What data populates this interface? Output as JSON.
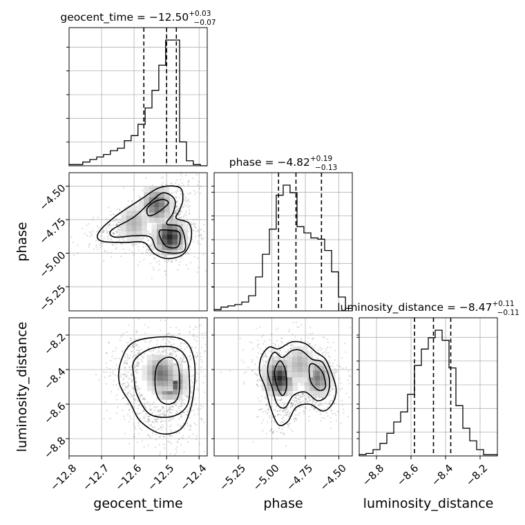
{
  "chart_data": {
    "type": "corner",
    "parameters": [
      {
        "name": "geocent_time",
        "axis_label": "geocent_time",
        "title_main": "geocent_time = −12.50",
        "title_sup": "+0.03",
        "title_sub": "−0.07",
        "range": [
          -12.8,
          -12.375
        ],
        "ticks": [
          -12.8,
          -12.7,
          -12.6,
          -12.5,
          -12.4
        ],
        "tick_labels": [
          "−12.8",
          "−12.7",
          "−12.6",
          "−12.5",
          "−12.4"
        ],
        "quantiles": [
          -12.57,
          -12.5,
          -12.47
        ],
        "histogram": {
          "edges": [
            -12.8,
            -12.779,
            -12.758,
            -12.736,
            -12.715,
            -12.694,
            -12.673,
            -12.651,
            -12.63,
            -12.609,
            -12.588,
            -12.566,
            -12.545,
            -12.524,
            -12.503,
            -12.481,
            -12.46,
            -12.439,
            -12.418,
            -12.396,
            -12.375
          ],
          "counts": [
            1,
            1,
            3,
            5,
            7,
            9,
            12,
            14,
            20,
            24,
            33,
            46,
            60,
            80,
            100,
            100,
            19,
            4,
            1,
            0
          ]
        }
      },
      {
        "name": "phase",
        "axis_label": "phase",
        "title_main": "phase = −4.82",
        "title_sup": "+0.19",
        "title_sub": "−0.13",
        "range": [
          -5.43,
          -4.4
        ],
        "ticks": [
          -5.25,
          -5.0,
          -4.75,
          -4.5
        ],
        "tick_labels": [
          "−5.25",
          "−5.00",
          "−4.75",
          "−4.50"
        ],
        "quantiles": [
          -4.95,
          -4.82,
          -4.63
        ],
        "histogram": {
          "edges": [
            -5.43,
            -5.379,
            -5.327,
            -5.276,
            -5.224,
            -5.173,
            -5.121,
            -5.07,
            -5.018,
            -4.967,
            -4.915,
            -4.864,
            -4.812,
            -4.761,
            -4.709,
            -4.657,
            -4.606,
            -4.554,
            -4.503,
            -4.451,
            -4.4
          ],
          "counts": [
            1,
            3,
            4,
            5,
            7,
            12,
            27,
            45,
            65,
            92,
            100,
            94,
            67,
            62,
            58,
            57,
            48,
            31,
            11,
            2
          ]
        }
      },
      {
        "name": "luminosity_distance",
        "axis_label": "luminosity_distance",
        "title_main": "luminosity_distance = −8.47",
        "title_sup": "+0.11",
        "title_sub": "−0.11",
        "range": [
          -8.9,
          -8.1
        ],
        "ticks": [
          -8.8,
          -8.6,
          -8.4,
          -8.2
        ],
        "tick_labels": [
          "−8.8",
          "−8.6",
          "−8.4",
          "−8.2"
        ],
        "quantiles": [
          -8.58,
          -8.47,
          -8.37
        ],
        "histogram": {
          "edges": [
            -8.9,
            -8.86,
            -8.82,
            -8.78,
            -8.74,
            -8.7,
            -8.66,
            -8.62,
            -8.58,
            -8.54,
            -8.5,
            -8.46,
            -8.42,
            -8.38,
            -8.34,
            -8.3,
            -8.26,
            -8.22,
            -8.18,
            -8.14,
            -8.1
          ],
          "counts": [
            1,
            2,
            5,
            10,
            18,
            27,
            35,
            49,
            72,
            85,
            94,
            100,
            92,
            70,
            40,
            22,
            12,
            5,
            1,
            1
          ]
        }
      }
    ],
    "panels_2d": [
      {
        "x_param": "geocent_time",
        "y_param": "phase",
        "centers": [
          {
            "x": -12.49,
            "y": -4.88,
            "w": 1.0
          },
          {
            "x": -12.53,
            "y": -4.64,
            "w": 0.7
          },
          {
            "x": -12.6,
            "y": -4.78,
            "w": 0.35
          }
        ],
        "cloud_center": {
          "x": -12.54,
          "y": -4.75
        },
        "contours": [
          {
            "level": 1,
            "points": [
              [
                -12.49,
                -4.83
              ],
              [
                -12.46,
                -4.85
              ],
              [
                -12.465,
                -4.95
              ],
              [
                -12.5,
                -4.95
              ],
              [
                -12.52,
                -4.88
              ],
              [
                -12.52,
                -4.83
              ]
            ]
          },
          {
            "level": 1,
            "points": [
              [
                -12.56,
                -4.67
              ],
              [
                -12.54,
                -4.62
              ],
              [
                -12.51,
                -4.6
              ],
              [
                -12.495,
                -4.63
              ],
              [
                -12.53,
                -4.7
              ],
              [
                -12.555,
                -4.72
              ]
            ]
          },
          {
            "level": 2,
            "points": [
              [
                -12.67,
                -4.83
              ],
              [
                -12.6,
                -4.73
              ],
              [
                -12.55,
                -4.62
              ],
              [
                -12.51,
                -4.55
              ],
              [
                -12.475,
                -4.6
              ],
              [
                -12.48,
                -4.7
              ],
              [
                -12.5,
                -4.78
              ],
              [
                -12.46,
                -4.8
              ],
              [
                -12.445,
                -4.88
              ],
              [
                -12.445,
                -4.98
              ],
              [
                -12.485,
                -5.0
              ],
              [
                -12.53,
                -4.97
              ],
              [
                -12.55,
                -4.88
              ],
              [
                -12.6,
                -4.87
              ],
              [
                -12.66,
                -4.88
              ]
            ]
          },
          {
            "level": 3,
            "points": [
              [
                -12.71,
                -4.85
              ],
              [
                -12.66,
                -4.73
              ],
              [
                -12.58,
                -4.6
              ],
              [
                -12.52,
                -4.51
              ],
              [
                -12.46,
                -4.51
              ],
              [
                -12.45,
                -4.6
              ],
              [
                -12.46,
                -4.68
              ],
              [
                -12.47,
                -4.74
              ],
              [
                -12.43,
                -4.78
              ],
              [
                -12.425,
                -4.9
              ],
              [
                -12.45,
                -5.01
              ],
              [
                -12.5,
                -5.04
              ],
              [
                -12.54,
                -5.0
              ],
              [
                -12.57,
                -4.92
              ],
              [
                -12.63,
                -4.92
              ],
              [
                -12.7,
                -4.91
              ]
            ]
          }
        ]
      },
      {
        "x_param": "geocent_time",
        "y_param": "luminosity_distance",
        "centers": [
          {
            "x": -12.49,
            "y": -8.47,
            "w": 1.0
          },
          {
            "x": -12.52,
            "y": -8.42,
            "w": 0.6
          }
        ],
        "cloud_center": {
          "x": -12.53,
          "y": -8.45
        },
        "contours": [
          {
            "level": 1,
            "points": [
              [
                -12.53,
                -8.38
              ],
              [
                -12.5,
                -8.33
              ],
              [
                -12.47,
                -8.35
              ],
              [
                -12.46,
                -8.45
              ],
              [
                -12.465,
                -8.56
              ],
              [
                -12.49,
                -8.6
              ],
              [
                -12.52,
                -8.58
              ],
              [
                -12.535,
                -8.5
              ]
            ]
          },
          {
            "level": 2,
            "points": [
              [
                -12.6,
                -8.35
              ],
              [
                -12.55,
                -8.28
              ],
              [
                -12.48,
                -8.27
              ],
              [
                -12.44,
                -8.33
              ],
              [
                -12.43,
                -8.45
              ],
              [
                -12.435,
                -8.6
              ],
              [
                -12.48,
                -8.67
              ],
              [
                -12.55,
                -8.66
              ],
              [
                -12.59,
                -8.55
              ],
              [
                -12.6,
                -8.45
              ]
            ]
          },
          {
            "level": 3,
            "points": [
              [
                -12.64,
                -8.35
              ],
              [
                -12.6,
                -8.24
              ],
              [
                -12.5,
                -8.21
              ],
              [
                -12.44,
                -8.24
              ],
              [
                -12.415,
                -8.35
              ],
              [
                -12.415,
                -8.5
              ],
              [
                -12.43,
                -8.65
              ],
              [
                -12.46,
                -8.75
              ],
              [
                -12.52,
                -8.77
              ],
              [
                -12.58,
                -8.7
              ],
              [
                -12.61,
                -8.6
              ],
              [
                -12.645,
                -8.48
              ]
            ]
          }
        ]
      },
      {
        "x_param": "phase",
        "y_param": "luminosity_distance",
        "centers": [
          {
            "x": -4.94,
            "y": -8.45,
            "w": 1.0
          },
          {
            "x": -4.66,
            "y": -8.45,
            "w": 0.6
          },
          {
            "x": -4.79,
            "y": -8.37,
            "w": 0.35
          }
        ],
        "cloud_center": {
          "x": -4.83,
          "y": -8.45
        },
        "contours": [
          {
            "level": 1,
            "points": [
              [
                -4.98,
                -8.41
              ],
              [
                -4.94,
                -8.35
              ],
              [
                -4.9,
                -8.4
              ],
              [
                -4.89,
                -8.5
              ],
              [
                -4.92,
                -8.55
              ],
              [
                -4.96,
                -8.5
              ]
            ]
          },
          {
            "level": 1,
            "points": [
              [
                -4.72,
                -8.38
              ],
              [
                -4.68,
                -8.37
              ],
              [
                -4.62,
                -8.42
              ],
              [
                -4.6,
                -8.5
              ],
              [
                -4.65,
                -8.52
              ],
              [
                -4.71,
                -8.47
              ]
            ]
          },
          {
            "level": 2,
            "points": [
              [
                -5.02,
                -8.35
              ],
              [
                -4.98,
                -8.3
              ],
              [
                -4.92,
                -8.33
              ],
              [
                -4.85,
                -8.29
              ],
              [
                -4.78,
                -8.29
              ],
              [
                -4.7,
                -8.34
              ],
              [
                -4.62,
                -8.36
              ],
              [
                -4.57,
                -8.46
              ],
              [
                -4.59,
                -8.55
              ],
              [
                -4.66,
                -8.58
              ],
              [
                -4.75,
                -8.53
              ],
              [
                -4.84,
                -8.55
              ],
              [
                -4.9,
                -8.62
              ],
              [
                -4.96,
                -8.6
              ],
              [
                -5.0,
                -8.5
              ],
              [
                -5.03,
                -8.42
              ]
            ]
          },
          {
            "level": 3,
            "points": [
              [
                -5.08,
                -8.33
              ],
              [
                -5.02,
                -8.27
              ],
              [
                -4.95,
                -8.28
              ],
              [
                -4.85,
                -8.24
              ],
              [
                -4.75,
                -8.25
              ],
              [
                -4.67,
                -8.3
              ],
              [
                -4.6,
                -8.34
              ],
              [
                -4.55,
                -8.43
              ],
              [
                -4.52,
                -8.52
              ],
              [
                -4.55,
                -8.6
              ],
              [
                -4.62,
                -8.64
              ],
              [
                -4.72,
                -8.6
              ],
              [
                -4.82,
                -8.62
              ],
              [
                -4.88,
                -8.7
              ],
              [
                -4.95,
                -8.72
              ],
              [
                -5.01,
                -8.62
              ],
              [
                -5.05,
                -8.5
              ],
              [
                -5.09,
                -8.42
              ]
            ]
          }
        ]
      }
    ],
    "grid": true
  }
}
